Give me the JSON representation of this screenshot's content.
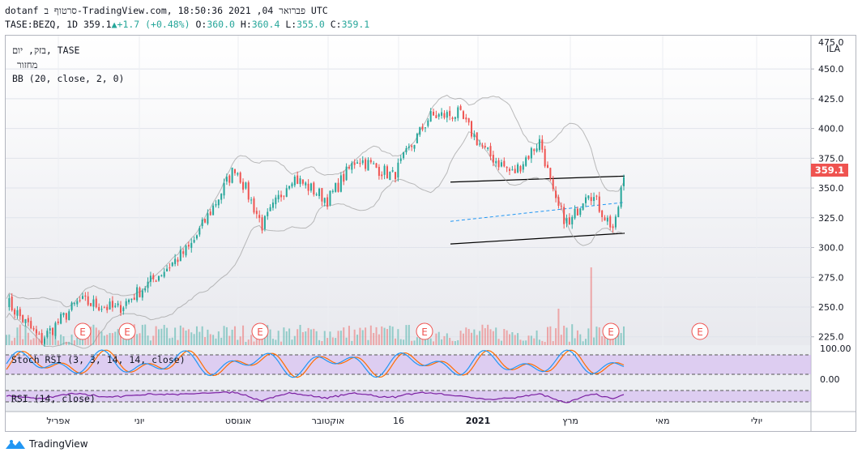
{
  "header": {
    "line1": "dotanf סרטוף ב-TradingView.com, פברואר 04, 2021 18:50:36 UTC",
    "symbol": "TASE:BEZQ, 1D",
    "last": "359.1",
    "change": "+1.7 (+0.48%)",
    "o_label": "O:",
    "o": "360.0",
    "h_label": "H:",
    "h": "360.4",
    "l_label": "L:",
    "l": "355.0",
    "c_label": "C:",
    "c": "359.1"
  },
  "legend": {
    "title": "בזק, יום, TASE",
    "volume": "מחזור",
    "bb": "BB (20, close, 2, 0)",
    "stoch": "Stoch RSI (3, 3, 14, 14, close)",
    "rsi": "RSI (14, close)"
  },
  "price_axis": {
    "currency": "ILA",
    "ticks": [
      "450.0",
      "425.0",
      "400.0",
      "375.0",
      "350.0",
      "325.0",
      "300.0",
      "275.0",
      "250.0",
      "225.0"
    ],
    "last_badge": "359.1",
    "top_partial": "475.0"
  },
  "stoch_axis": {
    "ticks": [
      "100.00",
      "0.00"
    ]
  },
  "time_axis": {
    "labels": [
      "אפריל",
      "יוני",
      "אוגוסט",
      "אוקטובר",
      "16",
      "2021",
      "מרץ",
      "מאי",
      "יולי"
    ]
  },
  "earnings_marker": "E",
  "footer": {
    "brand": "TradingView"
  },
  "colors": {
    "up": "#26a69a",
    "down": "#ef5350",
    "stoch_k": "#2196f3",
    "stoch_d": "#ff6d00",
    "rsi": "#7b1fa2",
    "bb": "#9e9e9e",
    "channel": "#000000",
    "mid": "#2196f3"
  },
  "chart_data": {
    "type": "candlestick",
    "symbol": "TASE:BEZQ",
    "interval": "1D",
    "x_range": [
      "2020-03",
      "2021-02-04"
    ],
    "ylim": [
      218,
      478
    ],
    "last_close": 359.1,
    "approx_close_path": [
      {
        "t": "2020-03",
        "v": 255
      },
      {
        "t": "2020-03-20",
        "v": 222
      },
      {
        "t": "2020-04-10",
        "v": 255
      },
      {
        "t": "2020-05",
        "v": 248
      },
      {
        "t": "2020-05-20",
        "v": 272
      },
      {
        "t": "2020-06-10",
        "v": 300
      },
      {
        "t": "2020-06-25",
        "v": 340
      },
      {
        "t": "2020-07-05",
        "v": 368
      },
      {
        "t": "2020-07-20",
        "v": 318
      },
      {
        "t": "2020-08-05",
        "v": 360
      },
      {
        "t": "2020-08-25",
        "v": 340
      },
      {
        "t": "2020-09-10",
        "v": 375
      },
      {
        "t": "2020-09-30",
        "v": 360
      },
      {
        "t": "2020-10-20",
        "v": 410
      },
      {
        "t": "2020-11-05",
        "v": 412
      },
      {
        "t": "2020-11-20",
        "v": 380
      },
      {
        "t": "2020-12-05",
        "v": 362
      },
      {
        "t": "2020-12-20",
        "v": 390
      },
      {
        "t": "2020-12-28",
        "v": 338
      },
      {
        "t": "2021-01-05",
        "v": 318
      },
      {
        "t": "2021-01-15",
        "v": 350
      },
      {
        "t": "2021-01-25",
        "v": 325
      },
      {
        "t": "2021-01-30",
        "v": 315
      },
      {
        "t": "2021-02-02",
        "v": 345
      },
      {
        "t": "2021-02-04",
        "v": 359
      }
    ],
    "channel": {
      "upper": [
        355,
        360
      ],
      "lower": [
        303,
        312
      ],
      "mid": [
        322,
        338
      ]
    },
    "earnings_dates": [
      "2020-05",
      "2020-06",
      "2020-08",
      "2020-11",
      "2021-02",
      "2021-03"
    ]
  }
}
